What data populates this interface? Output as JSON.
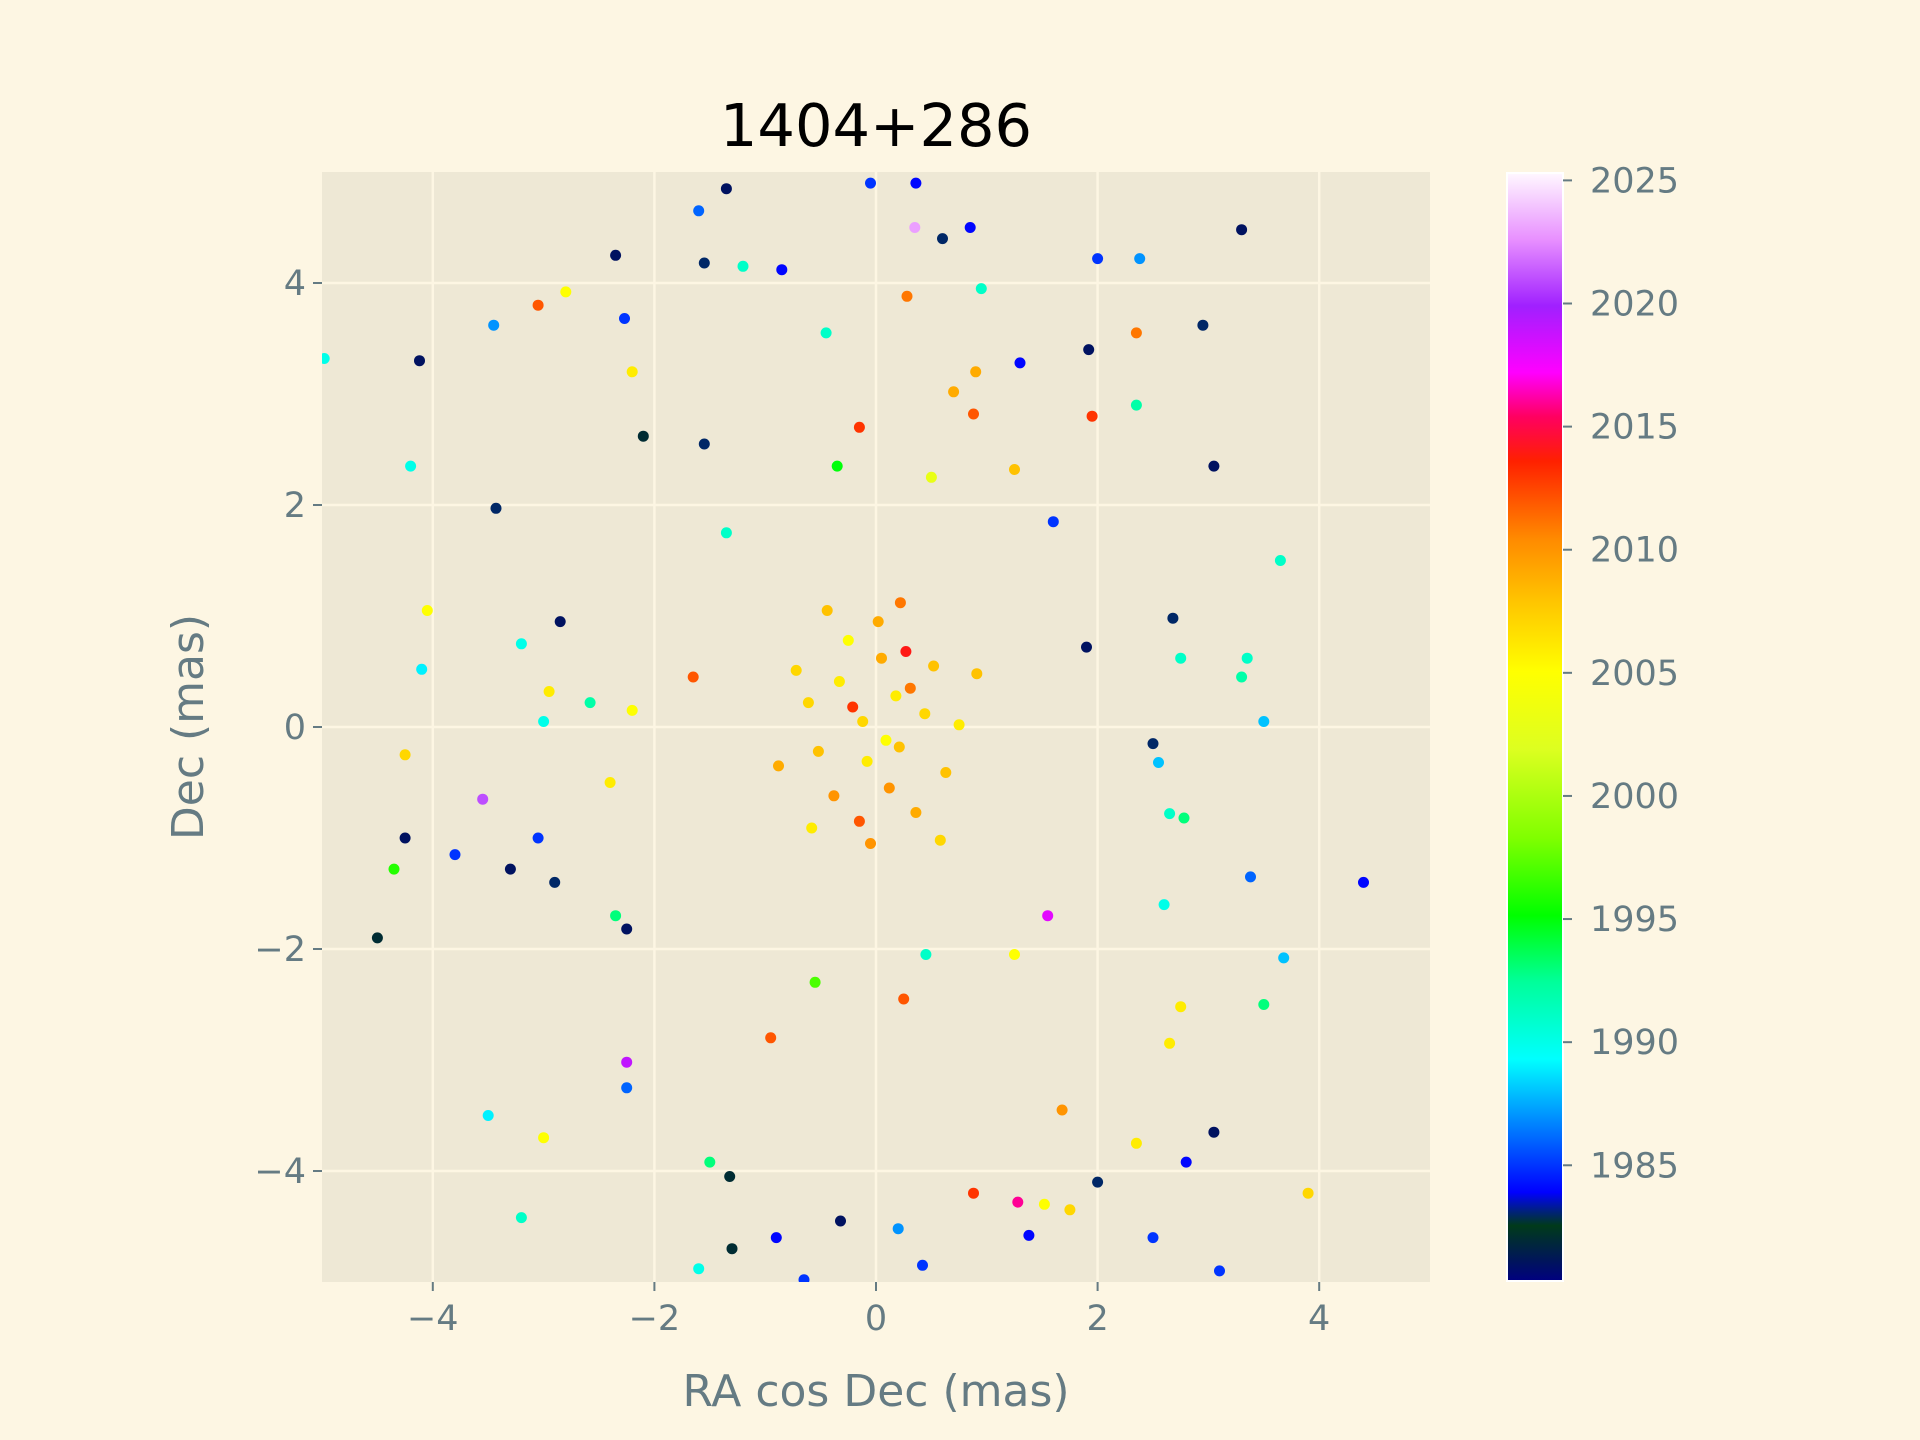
{
  "chart_data": {
    "type": "scatter",
    "title": "1404+286",
    "xlabel": "RA cos Dec (mas)",
    "ylabel": "Dec (mas)",
    "xlim": [
      -5,
      5
    ],
    "ylim": [
      -5,
      5
    ],
    "xticks": [
      -4,
      -2,
      0,
      2,
      4
    ],
    "yticks": [
      -4,
      -2,
      0,
      2,
      4
    ],
    "xtick_labels": [
      "−4",
      "−2",
      "0",
      "2",
      "4"
    ],
    "ytick_labels": [
      "−4",
      "−2",
      "0",
      "2",
      "4"
    ],
    "grid": true,
    "colorbar": {
      "label": "",
      "range": [
        1980.3,
        2025.3
      ],
      "ticks": [
        1985,
        1990,
        1995,
        2000,
        2005,
        2010,
        2015,
        2020,
        2025
      ],
      "tick_labels": [
        "1985",
        "1990",
        "1995",
        "2000",
        "2005",
        "2010",
        "2015",
        "2020",
        "2025"
      ],
      "colormap": "gist_ncar"
    },
    "points_note_reference": "color encodes observation epoch (year)",
    "series": [
      {
        "values": [
          [
            -0.12,
            0.05,
            2007
          ],
          [
            0.21,
            -0.18,
            2008
          ],
          [
            -0.33,
            0.41,
            2006
          ],
          [
            0.05,
            0.62,
            2009
          ],
          [
            0.44,
            0.12,
            2007
          ],
          [
            -0.52,
            -0.22,
            2008
          ],
          [
            0.12,
            -0.55,
            2010
          ],
          [
            -0.08,
            -0.31,
            2006
          ],
          [
            0.31,
            0.35,
            2011
          ],
          [
            -0.25,
            0.78,
            2005
          ],
          [
            0.63,
            -0.41,
            2008
          ],
          [
            -0.61,
            0.22,
            2007
          ],
          [
            0.02,
            0.95,
            2009
          ],
          [
            0.18,
            0.28,
            2006
          ],
          [
            -0.38,
            -0.62,
            2010
          ],
          [
            0.52,
            0.55,
            2008
          ],
          [
            -0.15,
            -0.85,
            2012
          ],
          [
            0.36,
            -0.77,
            2009
          ],
          [
            -0.72,
            0.51,
            2007
          ],
          [
            0.75,
            0.02,
            2006
          ],
          [
            -0.44,
            1.05,
            2008
          ],
          [
            0.22,
            1.12,
            2011
          ],
          [
            -0.05,
            -1.05,
            2010
          ],
          [
            0.58,
            -1.02,
            2007
          ],
          [
            -0.88,
            -0.35,
            2009
          ],
          [
            0.91,
            0.48,
            2008
          ],
          [
            -0.21,
            0.18,
            2013
          ],
          [
            0.09,
            -0.12,
            2005
          ],
          [
            0.27,
            0.68,
            2014
          ],
          [
            -0.58,
            -0.91,
            2006
          ],
          [
            -0.05,
            4.9,
            1985
          ],
          [
            0.36,
            4.9,
            1984
          ],
          [
            -1.35,
            4.85,
            1981
          ],
          [
            -1.6,
            4.65,
            1986
          ],
          [
            -2.35,
            4.25,
            1981
          ],
          [
            3.3,
            4.48,
            1981
          ],
          [
            -1.55,
            4.18,
            1983
          ],
          [
            -1.2,
            4.15,
            1991
          ],
          [
            -0.85,
            4.12,
            1984
          ],
          [
            2.0,
            4.22,
            1985
          ],
          [
            2.38,
            4.22,
            1987
          ],
          [
            0.85,
            4.5,
            1984
          ],
          [
            0.6,
            4.4,
            1983
          ],
          [
            0.35,
            4.5,
            2023
          ],
          [
            -3.05,
            3.8,
            2012
          ],
          [
            -2.8,
            3.92,
            2005
          ],
          [
            0.28,
            3.88,
            2011
          ],
          [
            0.95,
            3.95,
            1991
          ],
          [
            -2.27,
            3.68,
            1985
          ],
          [
            -3.45,
            3.62,
            1987
          ],
          [
            2.35,
            3.55,
            2011
          ],
          [
            2.95,
            3.62,
            1983
          ],
          [
            -4.12,
            3.3,
            1981
          ],
          [
            -4.98,
            3.32,
            1990
          ],
          [
            1.92,
            3.4,
            1981
          ],
          [
            0.9,
            3.2,
            2009
          ],
          [
            -2.2,
            3.2,
            2006
          ],
          [
            1.3,
            3.28,
            1984
          ],
          [
            -0.45,
            3.55,
            1991
          ],
          [
            0.7,
            3.02,
            2009
          ],
          [
            0.88,
            2.82,
            2012
          ],
          [
            1.95,
            2.8,
            2013
          ],
          [
            2.35,
            2.9,
            1992
          ],
          [
            -2.1,
            2.62,
            1982
          ],
          [
            -1.55,
            2.55,
            1983
          ],
          [
            -0.15,
            2.7,
            2013
          ],
          [
            3.05,
            2.35,
            1981
          ],
          [
            -4.2,
            2.35,
            1990
          ],
          [
            -3.43,
            1.97,
            1983
          ],
          [
            1.6,
            1.85,
            1985
          ],
          [
            -1.35,
            1.75,
            1991
          ],
          [
            -0.35,
            2.35,
            1995
          ],
          [
            0.5,
            2.25,
            2003
          ],
          [
            1.25,
            2.32,
            2008
          ],
          [
            3.65,
            1.5,
            1991
          ],
          [
            -4.05,
            1.05,
            2005
          ],
          [
            -2.85,
            0.95,
            1981
          ],
          [
            -4.1,
            0.52,
            1989
          ],
          [
            -3.2,
            0.75,
            1990
          ],
          [
            2.68,
            0.98,
            1983
          ],
          [
            2.75,
            0.62,
            1991
          ],
          [
            3.35,
            0.62,
            1991
          ],
          [
            1.9,
            0.72,
            1981
          ],
          [
            -1.65,
            0.45,
            2012
          ],
          [
            -2.95,
            0.32,
            2006
          ],
          [
            -2.58,
            0.22,
            1992
          ],
          [
            -2.2,
            0.15,
            2005
          ],
          [
            3.3,
            0.45,
            1992
          ],
          [
            3.5,
            0.05,
            1988
          ],
          [
            -3.0,
            0.05,
            1990
          ],
          [
            -4.25,
            -0.25,
            2007
          ],
          [
            2.5,
            -0.15,
            1983
          ],
          [
            2.55,
            -0.32,
            1988
          ],
          [
            -3.55,
            -0.65,
            2021
          ],
          [
            -2.4,
            -0.5,
            2006
          ],
          [
            2.65,
            -0.78,
            1991
          ],
          [
            2.78,
            -0.82,
            1993
          ],
          [
            -4.25,
            -1.0,
            1981
          ],
          [
            -3.05,
            -1.0,
            1985
          ],
          [
            -3.8,
            -1.15,
            1985
          ],
          [
            -3.3,
            -1.28,
            1981
          ],
          [
            -4.35,
            -1.28,
            1996
          ],
          [
            -2.9,
            -1.4,
            1983
          ],
          [
            4.4,
            -1.4,
            1984
          ],
          [
            3.38,
            -1.35,
            1986
          ],
          [
            2.6,
            -1.6,
            1990
          ],
          [
            -2.35,
            -1.7,
            1993
          ],
          [
            -2.25,
            -1.82,
            1981
          ],
          [
            -4.5,
            -1.9,
            1982
          ],
          [
            1.55,
            -1.7,
            2018
          ],
          [
            3.68,
            -2.08,
            1988
          ],
          [
            3.5,
            -2.5,
            1993
          ],
          [
            2.75,
            -2.52,
            2006
          ],
          [
            2.65,
            -2.85,
            2006
          ],
          [
            -2.25,
            -3.25,
            1986
          ],
          [
            -2.25,
            -3.02,
            2019
          ],
          [
            -3.5,
            -3.5,
            1989
          ],
          [
            -3.0,
            -3.7,
            2005
          ],
          [
            -3.2,
            -4.42,
            1991
          ],
          [
            -1.5,
            -3.92,
            1993
          ],
          [
            -1.32,
            -4.05,
            1982
          ],
          [
            3.05,
            -3.65,
            1981
          ],
          [
            2.8,
            -3.92,
            1984
          ],
          [
            2.35,
            -3.75,
            2006
          ],
          [
            2.0,
            -4.1,
            1983
          ],
          [
            3.9,
            -4.2,
            2007
          ],
          [
            2.5,
            -4.6,
            1985
          ],
          [
            3.1,
            -4.9,
            1985
          ],
          [
            -1.3,
            -4.7,
            1982
          ],
          [
            -0.9,
            -4.6,
            1984
          ],
          [
            -0.32,
            -4.45,
            1981
          ],
          [
            0.2,
            -4.52,
            1987
          ],
          [
            0.88,
            -4.2,
            2013
          ],
          [
            1.28,
            -4.28,
            2016
          ],
          [
            1.52,
            -4.3,
            2005
          ],
          [
            1.75,
            -4.35,
            2007
          ],
          [
            0.42,
            -4.85,
            1985
          ],
          [
            -0.65,
            -4.98,
            1985
          ],
          [
            -1.6,
            -4.88,
            1990
          ],
          [
            1.68,
            -3.45,
            2010
          ],
          [
            1.38,
            -4.58,
            1984
          ],
          [
            -0.95,
            -2.8,
            2012
          ],
          [
            -0.55,
            -2.3,
            1997
          ],
          [
            0.45,
            -2.05,
            1991
          ],
          [
            1.25,
            -2.05,
            2005
          ],
          [
            0.25,
            -2.45,
            2012
          ]
        ]
      }
    ]
  }
}
